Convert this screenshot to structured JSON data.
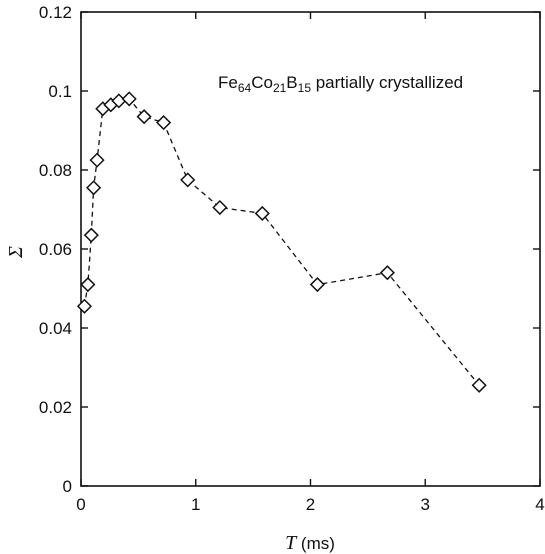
{
  "chart_data": {
    "type": "line",
    "annotation": {
      "parts": [
        {
          "text": "Fe",
          "sub": false
        },
        {
          "text": "64",
          "sub": true
        },
        {
          "text": "Co",
          "sub": false
        },
        {
          "text": "21",
          "sub": true
        },
        {
          "text": "B",
          "sub": false
        },
        {
          "text": "15",
          "sub": true
        },
        {
          "text": " partially crystallized",
          "sub": false
        }
      ]
    },
    "xlabel": {
      "symbol": "T",
      "unit": " (ms)"
    },
    "ylabel": {
      "symbol": "Σ"
    },
    "xlim": [
      0,
      4
    ],
    "ylim": [
      0,
      0.12
    ],
    "xticks": [
      "0",
      "1",
      "2",
      "3",
      "4"
    ],
    "yticks": [
      "0",
      "0.02",
      "0.04",
      "0.06",
      "0.08",
      "0.1",
      "0.12"
    ],
    "grid": false,
    "legend": "none",
    "series": [
      {
        "marker": "diamond",
        "line_style": "dashed",
        "color": "#111111",
        "points": [
          [
            0.03,
            0.0455
          ],
          [
            0.06,
            0.051
          ],
          [
            0.09,
            0.0635
          ],
          [
            0.11,
            0.0755
          ],
          [
            0.14,
            0.0825
          ],
          [
            0.19,
            0.0955
          ],
          [
            0.26,
            0.0965
          ],
          [
            0.33,
            0.0975
          ],
          [
            0.42,
            0.098
          ],
          [
            0.55,
            0.0935
          ],
          [
            0.72,
            0.092
          ],
          [
            0.93,
            0.0775
          ],
          [
            1.21,
            0.0705
          ],
          [
            1.58,
            0.069
          ],
          [
            2.06,
            0.051
          ],
          [
            2.67,
            0.054
          ],
          [
            3.47,
            0.0255
          ]
        ]
      }
    ]
  }
}
